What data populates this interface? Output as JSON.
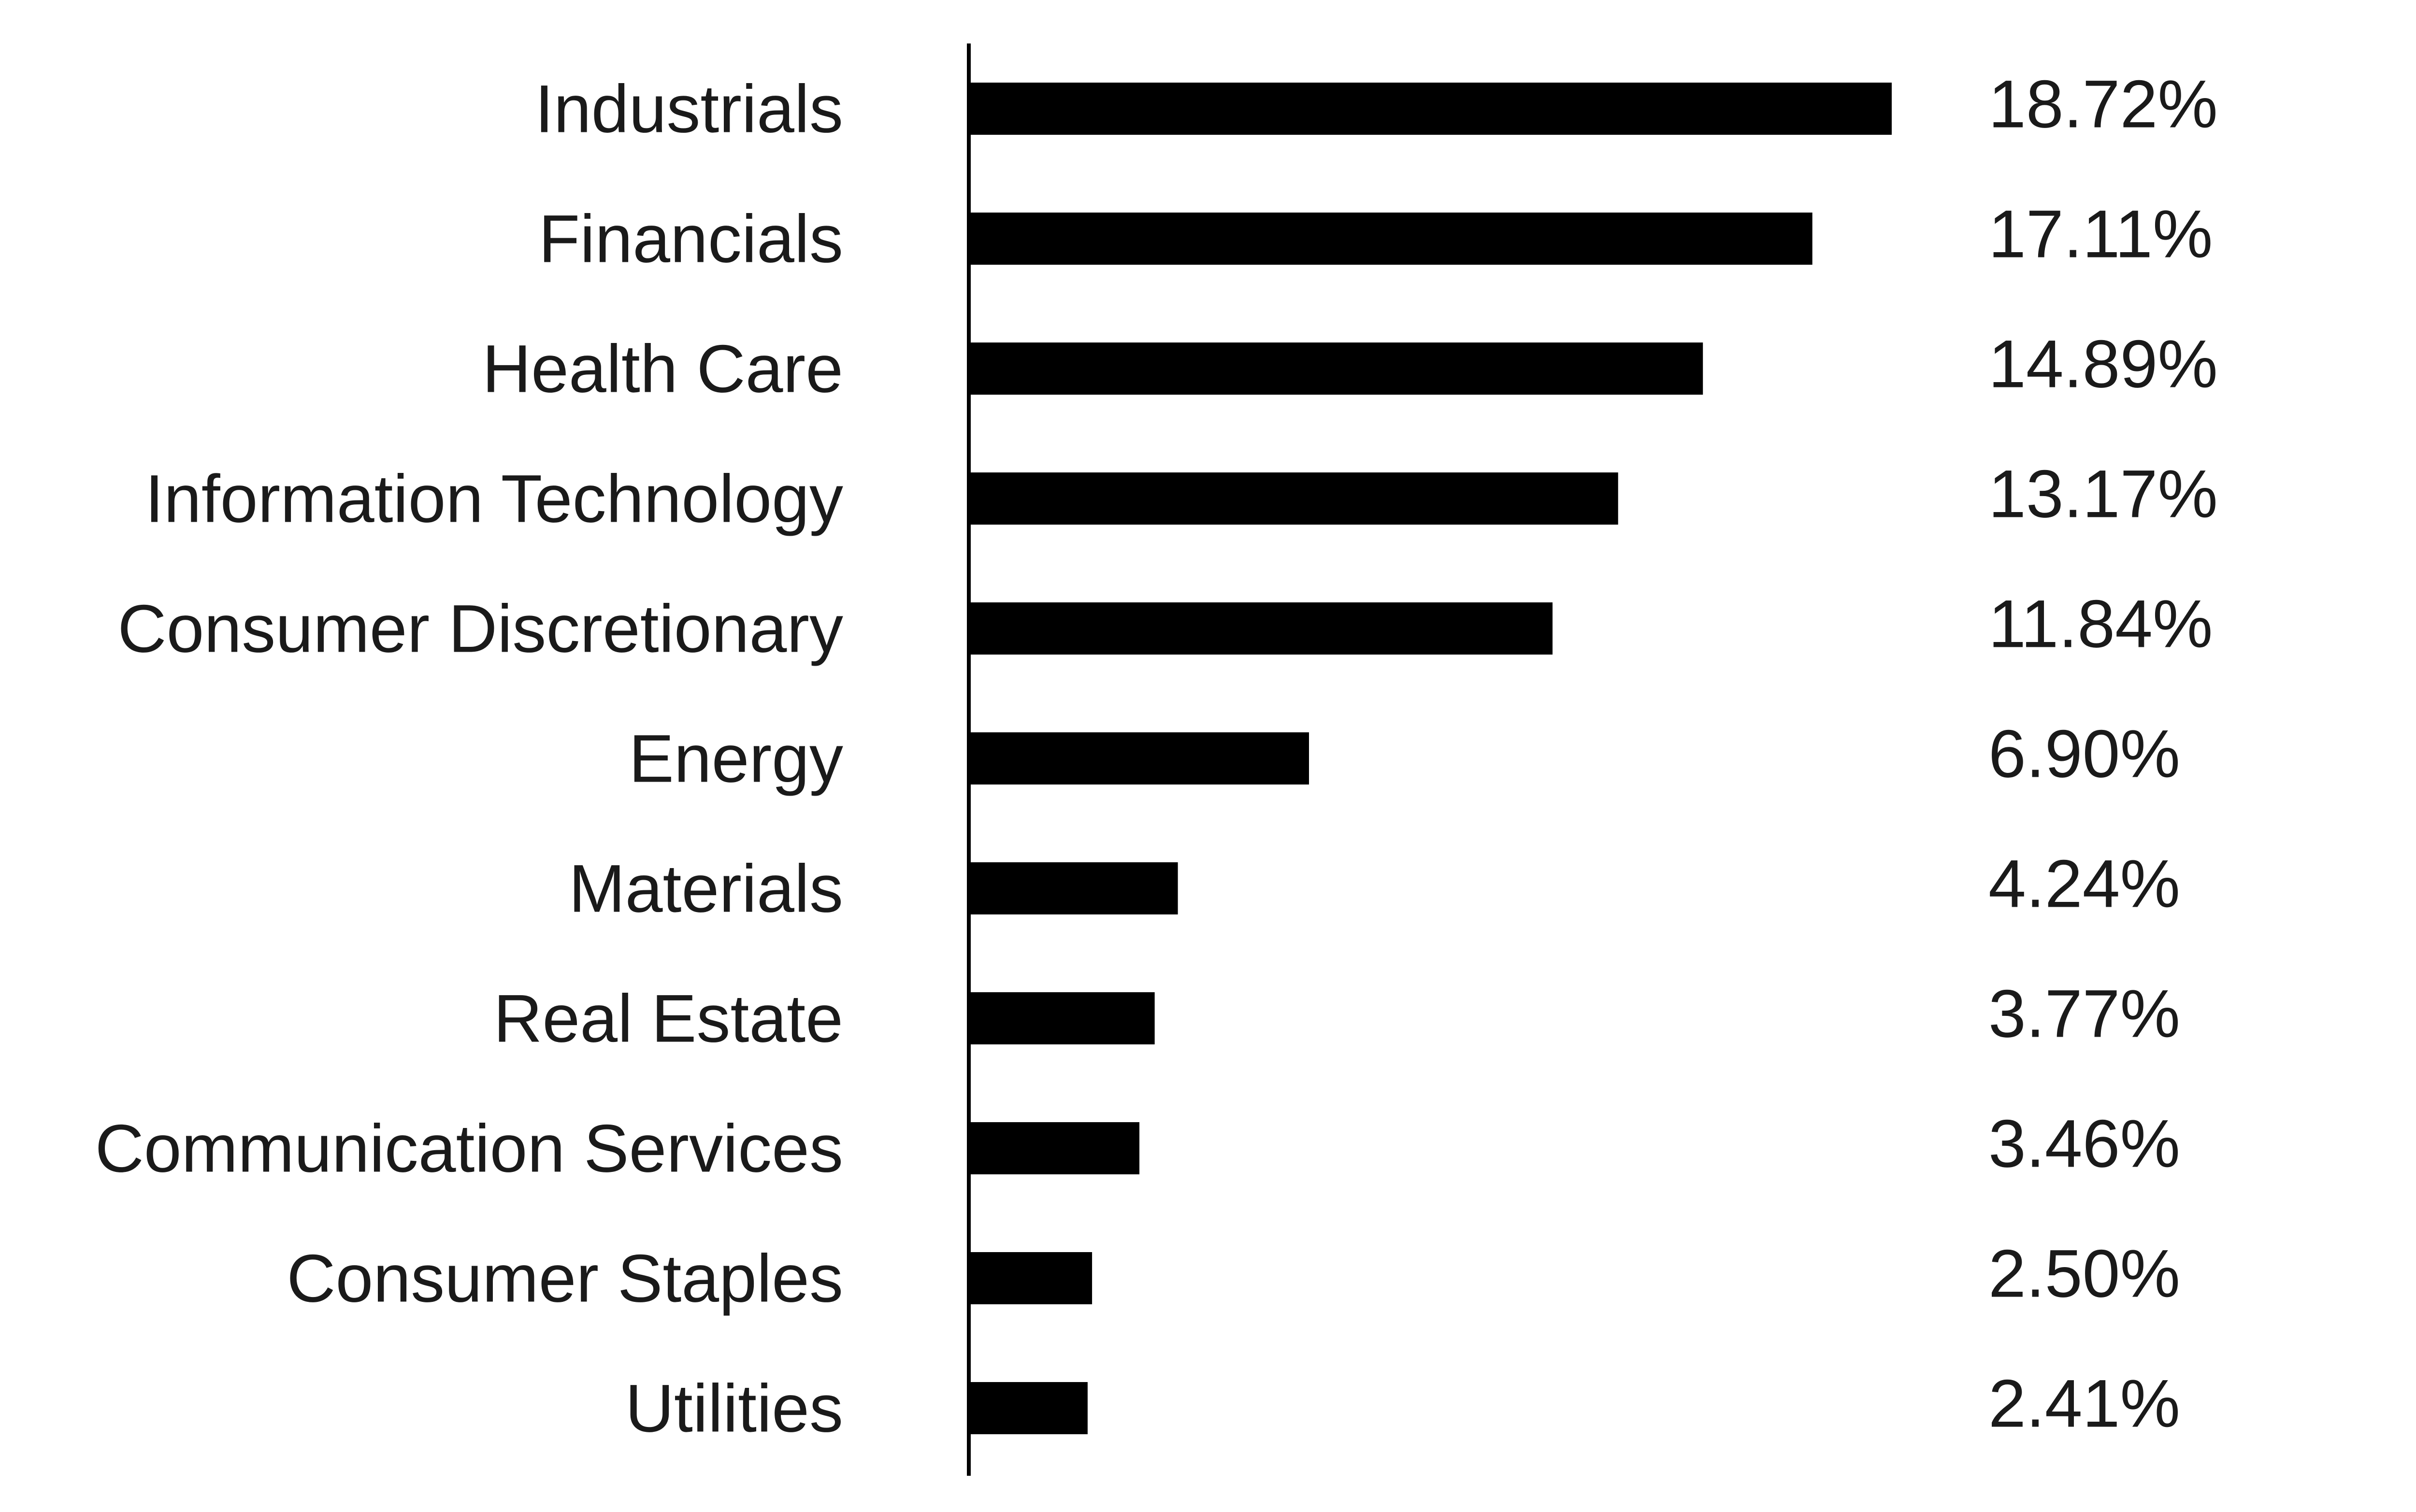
{
  "chart_data": {
    "type": "bar",
    "orientation": "horizontal",
    "categories": [
      "Industrials",
      "Financials",
      "Health Care",
      "Information Technology",
      "Consumer Discretionary",
      "Energy",
      "Materials",
      "Real Estate",
      "Communication Services",
      "Consumer Staples",
      "Utilities"
    ],
    "values": [
      18.72,
      17.11,
      14.89,
      13.17,
      11.84,
      6.9,
      4.24,
      3.77,
      3.46,
      2.5,
      2.41
    ],
    "value_labels": [
      "18.72%",
      "17.11%",
      "14.89%",
      "13.17%",
      "11.84%",
      "6.90%",
      "4.24%",
      "3.77%",
      "3.46%",
      "2.50%",
      "2.41%"
    ],
    "title": "",
    "xlabel": "",
    "ylabel": "",
    "xlim": [
      0,
      18.72
    ],
    "grid": false,
    "legend": "none",
    "colors": {
      "bar": "#000000",
      "axis": "#000000",
      "text": "#1a1a1a",
      "background": "#ffffff"
    }
  }
}
